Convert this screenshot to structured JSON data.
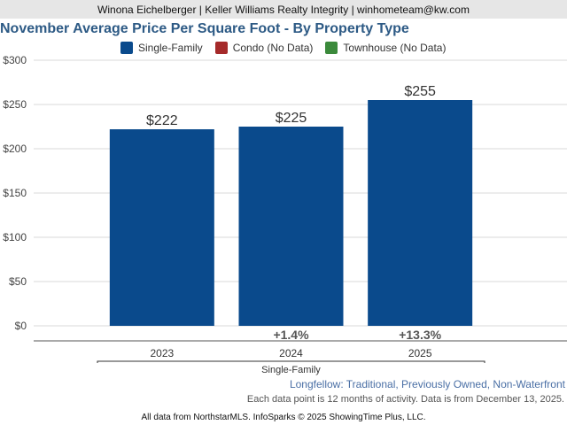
{
  "header": {
    "contact": "Winona Eichelberger | Keller Williams Realty Integrity | winhometeam@kw.com"
  },
  "legend": [
    {
      "label": "Single-Family",
      "color": "#0a4a8c"
    },
    {
      "label": "Condo (No Data)",
      "color": "#a52a2a"
    },
    {
      "label": "Townhouse (No Data)",
      "color": "#3b8a3b"
    }
  ],
  "chart_data": {
    "type": "bar",
    "title": "November Average Price Per Square Foot - By Property Type",
    "categories": [
      "2023",
      "2024",
      "2025"
    ],
    "series": [
      {
        "name": "Single-Family",
        "values": [
          222,
          225,
          255
        ],
        "color": "#0a4a8c"
      }
    ],
    "value_labels": [
      "$222",
      "$225",
      "$255"
    ],
    "change_labels": [
      "",
      "+1.4%",
      "+13.3%"
    ],
    "y_ticks": [
      0,
      50,
      100,
      150,
      200,
      250,
      300
    ],
    "y_tick_labels": [
      "$0",
      "$50",
      "$100",
      "$150",
      "$200",
      "$250",
      "$300"
    ],
    "ylim": [
      0,
      300
    ],
    "group_label": "Single-Family",
    "grid": true
  },
  "subtitle": "Longfellow: Traditional, Previously Owned, Non-Waterfront",
  "note": "Each data point is 12 months of activity. Data is from December 13, 2025.",
  "footer": "All data from NorthstarMLS. InfoSparks © 2025 ShowingTime Plus, LLC."
}
